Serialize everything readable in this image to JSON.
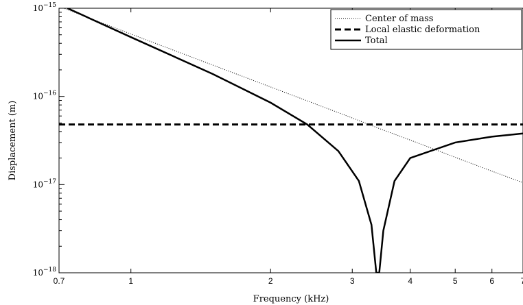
{
  "chart_data": {
    "type": "line",
    "xlabel": "Frequency (kHz)",
    "ylabel": "Displacement (m)",
    "x_scale": "log",
    "y_scale": "log",
    "xlim": [
      0.7,
      7
    ],
    "ylim": [
      1e-18,
      1e-15
    ],
    "x_ticks": [
      0.7,
      1,
      2,
      3,
      4,
      5,
      6,
      7
    ],
    "x_tick_labels": [
      "0.7",
      "1",
      "2",
      "3",
      "4",
      "5",
      "6",
      "7"
    ],
    "y_ticks": [
      1e-18,
      1e-17,
      1e-16,
      1e-15
    ],
    "y_tick_labels": [
      {
        "base": "10",
        "exp": "−18"
      },
      {
        "base": "10",
        "exp": "−17"
      },
      {
        "base": "10",
        "exp": "−16"
      },
      {
        "base": "10",
        "exp": "−15"
      }
    ],
    "grid": false,
    "legend_position": "top-right",
    "series": [
      {
        "name": "Center of mass",
        "style": "dotted",
        "x": [
          0.7,
          1,
          1.5,
          2,
          3,
          3.4,
          4,
          5,
          6,
          7
        ],
        "y": [
          1.05e-15,
          5.1e-16,
          2.27e-16,
          1.28e-16,
          5.7e-17,
          4.4e-17,
          3.2e-17,
          2.04e-17,
          1.42e-17,
          1.05e-17
        ]
      },
      {
        "name": "Local elastic deformation",
        "style": "dashed",
        "x": [
          0.7,
          7
        ],
        "y": [
          4.8e-17,
          4.8e-17
        ]
      },
      {
        "name": "Total",
        "style": "solid",
        "x": [
          0.73,
          1,
          1.5,
          2,
          2.4,
          2.8,
          3.1,
          3.3,
          3.38,
          3.4,
          3.43,
          3.5,
          3.7,
          4,
          5,
          6,
          7
        ],
        "y": [
          1e-15,
          4.7e-16,
          1.8e-16,
          8.5e-17,
          4.8e-17,
          2.4e-17,
          1.1e-17,
          3.5e-18,
          1e-18,
          1e-18,
          1e-18,
          3e-18,
          1.1e-17,
          2e-17,
          3e-17,
          3.5e-17,
          3.8e-17
        ]
      }
    ]
  }
}
